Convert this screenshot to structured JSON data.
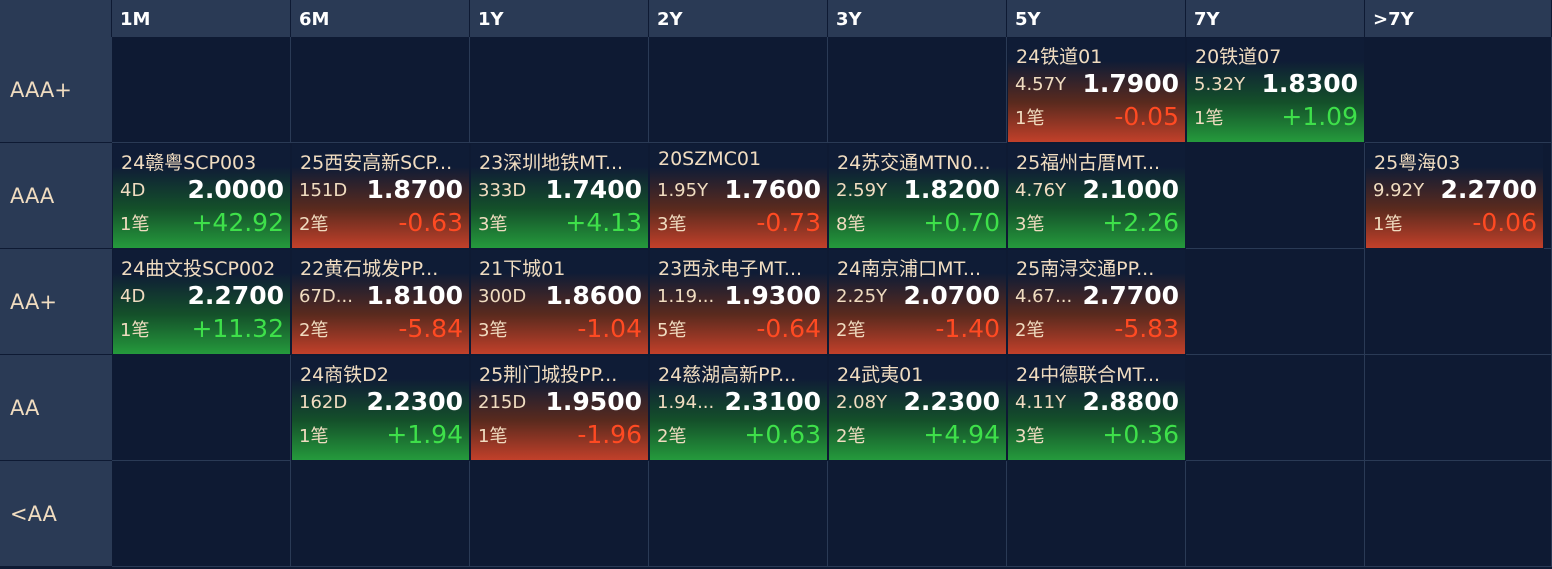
{
  "columns": [
    "1M",
    "6M",
    "1Y",
    "2Y",
    "3Y",
    "5Y",
    "7Y",
    ">7Y"
  ],
  "rows": [
    "AAA+",
    "AAA",
    "AA+",
    "AA",
    "<AA"
  ],
  "colors": {
    "up": "#259a3c",
    "down": "#c2402a",
    "positive_text": "#3ee04a",
    "negative_text": "#ff4a22"
  },
  "bonds": [
    {
      "row": 0,
      "col": 5,
      "name": "24铁道01",
      "term": "4.57Y",
      "price": "1.7900",
      "count": "1笔",
      "change": "-0.05",
      "dir": "down"
    },
    {
      "row": 0,
      "col": 6,
      "name": "20铁道07",
      "term": "5.32Y",
      "price": "1.8300",
      "count": "1笔",
      "change": "+1.09",
      "dir": "up"
    },
    {
      "row": 1,
      "col": 0,
      "name": "24赣粤SCP003",
      "term": "4D",
      "price": "2.0000",
      "count": "1笔",
      "change": "+42.92",
      "dir": "up"
    },
    {
      "row": 1,
      "col": 1,
      "name": "25西安高新SCP...",
      "term": "151D",
      "price": "1.8700",
      "count": "2笔",
      "change": "-0.63",
      "dir": "down"
    },
    {
      "row": 1,
      "col": 2,
      "name": "23深圳地铁MT...",
      "term": "333D",
      "price": "1.7400",
      "count": "3笔",
      "change": "+4.13",
      "dir": "up"
    },
    {
      "row": 1,
      "col": 3,
      "name": "20SZMC01",
      "term": "1.95Y",
      "price": "1.7600",
      "count": "3笔",
      "change": "-0.73",
      "dir": "down"
    },
    {
      "row": 1,
      "col": 4,
      "name": "24苏交通MTN0...",
      "term": "2.59Y",
      "price": "1.8200",
      "count": "8笔",
      "change": "+0.70",
      "dir": "up"
    },
    {
      "row": 1,
      "col": 5,
      "name": "25福州古厝MT...",
      "term": "4.76Y",
      "price": "2.1000",
      "count": "3笔",
      "change": "+2.26",
      "dir": "up"
    },
    {
      "row": 1,
      "col": 7,
      "name": "25粤海03",
      "term": "9.92Y",
      "price": "2.2700",
      "count": "1笔",
      "change": "-0.06",
      "dir": "down"
    },
    {
      "row": 2,
      "col": 0,
      "name": "24曲文投SCP002",
      "term": "4D",
      "price": "2.2700",
      "count": "1笔",
      "change": "+11.32",
      "dir": "up"
    },
    {
      "row": 2,
      "col": 1,
      "name": "22黄石城发PP...",
      "term": "67D...",
      "price": "1.8100",
      "count": "2笔",
      "change": "-5.84",
      "dir": "down"
    },
    {
      "row": 2,
      "col": 2,
      "name": "21下城01",
      "term": "300D",
      "price": "1.8600",
      "count": "3笔",
      "change": "-1.04",
      "dir": "down"
    },
    {
      "row": 2,
      "col": 3,
      "name": "23西永电子MT...",
      "term": "1.19...",
      "price": "1.9300",
      "count": "5笔",
      "change": "-0.64",
      "dir": "down"
    },
    {
      "row": 2,
      "col": 4,
      "name": "24南京浦口MT...",
      "term": "2.25Y",
      "price": "2.0700",
      "count": "2笔",
      "change": "-1.40",
      "dir": "down"
    },
    {
      "row": 2,
      "col": 5,
      "name": "25南浔交通PP...",
      "term": "4.67...",
      "price": "2.7700",
      "count": "2笔",
      "change": "-5.83",
      "dir": "down"
    },
    {
      "row": 3,
      "col": 1,
      "name": "24商铁D2",
      "term": "162D",
      "price": "2.2300",
      "count": "1笔",
      "change": "+1.94",
      "dir": "up"
    },
    {
      "row": 3,
      "col": 2,
      "name": "25荆门城投PP...",
      "term": "215D",
      "price": "1.9500",
      "count": "1笔",
      "change": "-1.96",
      "dir": "down"
    },
    {
      "row": 3,
      "col": 3,
      "name": "24慈湖高新PP...",
      "term": "1.94...",
      "price": "2.3100",
      "count": "2笔",
      "change": "+0.63",
      "dir": "up"
    },
    {
      "row": 3,
      "col": 4,
      "name": "24武夷01",
      "term": "2.08Y",
      "price": "2.2300",
      "count": "2笔",
      "change": "+4.94",
      "dir": "up"
    },
    {
      "row": 3,
      "col": 5,
      "name": "24中德联合MT...",
      "term": "4.11Y",
      "price": "2.8800",
      "count": "3笔",
      "change": "+0.36",
      "dir": "up"
    }
  ]
}
